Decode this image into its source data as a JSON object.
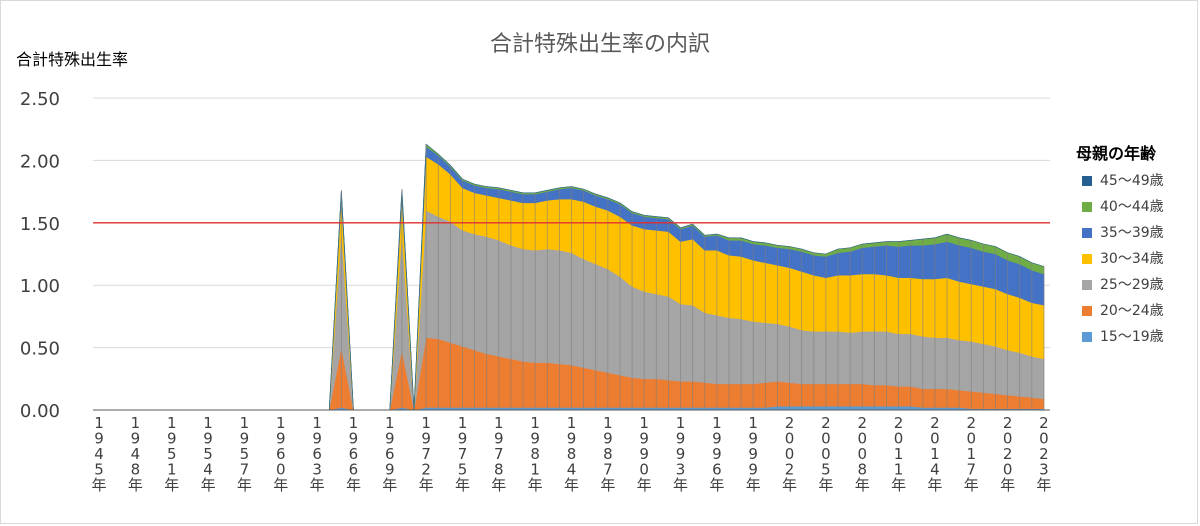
{
  "chart_data": {
    "type": "area",
    "title": "合計特殊出生率の内訳",
    "ylabel": "合計特殊出生率",
    "ylim": [
      0,
      2.5
    ],
    "yticks": [
      "0.00",
      "0.50",
      "1.00",
      "1.50",
      "2.00",
      "2.50"
    ],
    "reference_line": {
      "y": 1.5,
      "color": "#e03030"
    },
    "grid": true,
    "legend_title": "母親の年齢",
    "legend_position": "right",
    "x": [
      "1945年",
      "1946年",
      "1947年",
      "1948年",
      "1949年",
      "1950年",
      "1951年",
      "1952年",
      "1953年",
      "1954年",
      "1955年",
      "1956年",
      "1957年",
      "1958年",
      "1959年",
      "1960年",
      "1961年",
      "1962年",
      "1963年",
      "1964年",
      "1965年",
      "1966年",
      "1967年",
      "1968年",
      "1969年",
      "1970年",
      "1971年",
      "1972年",
      "1973年",
      "1974年",
      "1975年",
      "1976年",
      "1977年",
      "1978年",
      "1979年",
      "1980年",
      "1981年",
      "1982年",
      "1983年",
      "1984年",
      "1985年",
      "1986年",
      "1987年",
      "1988年",
      "1989年",
      "1990年",
      "1991年",
      "1992年",
      "1993年",
      "1994年",
      "1995年",
      "1996年",
      "1997年",
      "1998年",
      "1999年",
      "2000年",
      "2001年",
      "2002年",
      "2003年",
      "2004年",
      "2005年",
      "2006年",
      "2007年",
      "2008年",
      "2009年",
      "2010年",
      "2011年",
      "2012年",
      "2013年",
      "2014年",
      "2015年",
      "2016年",
      "2017年",
      "2018年",
      "2019年",
      "2020年",
      "2021年",
      "2022年",
      "2023年"
    ],
    "x_tick_labels": [
      "1945年",
      "1948年",
      "1951年",
      "1954年",
      "1957年",
      "1960年",
      "1963年",
      "1966年",
      "1969年",
      "1972年",
      "1975年",
      "1978年",
      "1981年",
      "1984年",
      "1987年",
      "1990年",
      "1993年",
      "1996年",
      "1999年",
      "2002年",
      "2005年",
      "2008年",
      "2011年",
      "2014年",
      "2017年",
      "2020年",
      "2023年"
    ],
    "series": [
      {
        "name": "15～19歳",
        "color": "#5b9bd5",
        "values": [
          0,
          0,
          0,
          0,
          0,
          0,
          0,
          0,
          0,
          0,
          0,
          0,
          0,
          0,
          0,
          0,
          0,
          0,
          0,
          0,
          0.02,
          0,
          0,
          0,
          0,
          0.02,
          0,
          0.02,
          0.02,
          0.02,
          0.02,
          0.02,
          0.02,
          0.02,
          0.02,
          0.02,
          0.02,
          0.02,
          0.02,
          0.02,
          0.02,
          0.02,
          0.02,
          0.02,
          0.02,
          0.02,
          0.02,
          0.02,
          0.02,
          0.02,
          0.02,
          0.02,
          0.02,
          0.02,
          0.02,
          0.02,
          0.03,
          0.03,
          0.03,
          0.03,
          0.03,
          0.03,
          0.03,
          0.03,
          0.03,
          0.03,
          0.03,
          0.03,
          0.02,
          0.02,
          0.02,
          0.02,
          0.01,
          0.01,
          0.01,
          0.01,
          0.01,
          0.01,
          0.01
        ]
      },
      {
        "name": "20～24歳",
        "color": "#ed7d31",
        "values": [
          0,
          0,
          0,
          0,
          0,
          0,
          0,
          0,
          0,
          0,
          0,
          0,
          0,
          0,
          0,
          0,
          0,
          0,
          0,
          0,
          0.48,
          0,
          0,
          0,
          0,
          0.46,
          0,
          0.56,
          0.55,
          0.52,
          0.49,
          0.46,
          0.43,
          0.41,
          0.39,
          0.37,
          0.36,
          0.36,
          0.35,
          0.34,
          0.32,
          0.3,
          0.28,
          0.26,
          0.24,
          0.23,
          0.23,
          0.22,
          0.21,
          0.21,
          0.2,
          0.19,
          0.19,
          0.19,
          0.19,
          0.2,
          0.2,
          0.19,
          0.18,
          0.18,
          0.18,
          0.18,
          0.18,
          0.18,
          0.17,
          0.17,
          0.16,
          0.16,
          0.15,
          0.15,
          0.15,
          0.14,
          0.14,
          0.13,
          0.12,
          0.11,
          0.1,
          0.09,
          0.08
        ]
      },
      {
        "name": "25～29歳",
        "color": "#a5a5a5",
        "values": [
          0,
          0,
          0,
          0,
          0,
          0,
          0,
          0,
          0,
          0,
          0,
          0,
          0,
          0,
          0,
          0,
          0,
          0,
          0,
          0,
          0.95,
          0,
          0,
          0,
          0,
          0.95,
          0,
          1.02,
          0.98,
          0.97,
          0.93,
          0.93,
          0.94,
          0.93,
          0.91,
          0.9,
          0.9,
          0.91,
          0.91,
          0.9,
          0.87,
          0.85,
          0.83,
          0.79,
          0.73,
          0.7,
          0.68,
          0.67,
          0.62,
          0.61,
          0.56,
          0.55,
          0.53,
          0.52,
          0.5,
          0.48,
          0.46,
          0.45,
          0.43,
          0.42,
          0.42,
          0.42,
          0.41,
          0.42,
          0.43,
          0.43,
          0.42,
          0.42,
          0.42,
          0.41,
          0.41,
          0.4,
          0.4,
          0.39,
          0.38,
          0.36,
          0.35,
          0.33,
          0.32
        ]
      },
      {
        "name": "30～34歳",
        "color": "#ffc000",
        "values": [
          0,
          0,
          0,
          0,
          0,
          0,
          0,
          0,
          0,
          0,
          0,
          0,
          0,
          0,
          0,
          0,
          0,
          0,
          0,
          0,
          0.25,
          0,
          0,
          0,
          0,
          0.27,
          0,
          0.43,
          0.42,
          0.38,
          0.34,
          0.33,
          0.33,
          0.34,
          0.36,
          0.37,
          0.38,
          0.39,
          0.41,
          0.43,
          0.46,
          0.46,
          0.47,
          0.48,
          0.49,
          0.5,
          0.51,
          0.52,
          0.5,
          0.53,
          0.5,
          0.52,
          0.5,
          0.5,
          0.49,
          0.48,
          0.47,
          0.47,
          0.47,
          0.45,
          0.43,
          0.45,
          0.46,
          0.46,
          0.46,
          0.45,
          0.45,
          0.45,
          0.46,
          0.47,
          0.48,
          0.47,
          0.46,
          0.46,
          0.46,
          0.45,
          0.44,
          0.43,
          0.43
        ]
      },
      {
        "name": "35～39歳",
        "color": "#4472c4",
        "values": [
          0,
          0,
          0,
          0,
          0,
          0,
          0,
          0,
          0,
          0,
          0,
          0,
          0,
          0,
          0,
          0,
          0,
          0,
          0,
          0,
          0.05,
          0,
          0,
          0,
          0,
          0.06,
          0,
          0.08,
          0.07,
          0.06,
          0.06,
          0.06,
          0.06,
          0.07,
          0.07,
          0.07,
          0.07,
          0.07,
          0.08,
          0.09,
          0.09,
          0.09,
          0.09,
          0.1,
          0.1,
          0.1,
          0.1,
          0.1,
          0.1,
          0.11,
          0.11,
          0.12,
          0.12,
          0.13,
          0.13,
          0.14,
          0.14,
          0.15,
          0.16,
          0.16,
          0.17,
          0.18,
          0.19,
          0.21,
          0.22,
          0.24,
          0.25,
          0.26,
          0.27,
          0.28,
          0.29,
          0.29,
          0.29,
          0.28,
          0.28,
          0.27,
          0.27,
          0.26,
          0.25
        ]
      },
      {
        "name": "40～44歳",
        "color": "#70ad47",
        "values": [
          0,
          0,
          0,
          0,
          0,
          0,
          0,
          0,
          0,
          0,
          0,
          0,
          0,
          0,
          0,
          0,
          0,
          0,
          0,
          0,
          0.01,
          0,
          0,
          0,
          0,
          0.01,
          0,
          0.02,
          0.01,
          0.01,
          0.01,
          0.01,
          0.01,
          0.01,
          0.01,
          0.01,
          0.01,
          0.01,
          0.01,
          0.01,
          0.01,
          0.01,
          0.01,
          0.01,
          0.01,
          0.01,
          0.01,
          0.01,
          0.01,
          0.01,
          0.01,
          0.01,
          0.02,
          0.02,
          0.02,
          0.02,
          0.02,
          0.02,
          0.02,
          0.02,
          0.02,
          0.03,
          0.03,
          0.03,
          0.03,
          0.03,
          0.04,
          0.04,
          0.05,
          0.05,
          0.06,
          0.06,
          0.06,
          0.06,
          0.06,
          0.06,
          0.06,
          0.06,
          0.06
        ]
      },
      {
        "name": "45～49歳",
        "color": "#255e91",
        "values": [
          0,
          0,
          0,
          0,
          0,
          0,
          0,
          0,
          0,
          0,
          0,
          0,
          0,
          0,
          0,
          0,
          0,
          0,
          0,
          0,
          0,
          0,
          0,
          0,
          0,
          0,
          0,
          0,
          0,
          0,
          0,
          0,
          0,
          0,
          0,
          0,
          0,
          0,
          0,
          0,
          0,
          0,
          0,
          0,
          0,
          0,
          0,
          0,
          0,
          0,
          0,
          0,
          0,
          0,
          0,
          0,
          0,
          0,
          0,
          0,
          0,
          0,
          0,
          0,
          0,
          0,
          0,
          0,
          0,
          0,
          0,
          0,
          0,
          0,
          0,
          0,
          0,
          0,
          0
        ]
      }
    ]
  }
}
